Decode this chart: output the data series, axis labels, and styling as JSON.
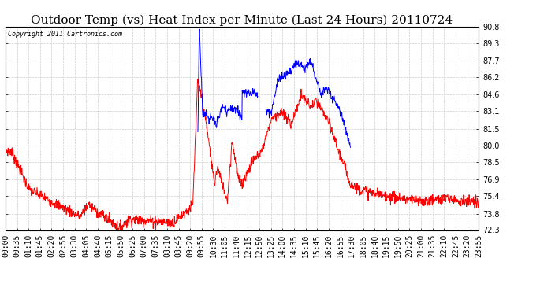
{
  "title": "Outdoor Temp (vs) Heat Index per Minute (Last 24 Hours) 20110724",
  "copyright_text": "Copyright 2011 Cartronics.com",
  "y_min": 72.3,
  "y_max": 90.8,
  "y_ticks": [
    72.3,
    73.8,
    75.4,
    76.9,
    78.5,
    80.0,
    81.5,
    83.1,
    84.6,
    86.2,
    87.7,
    89.3,
    90.8
  ],
  "x_labels": [
    "00:00",
    "00:35",
    "01:10",
    "01:45",
    "02:20",
    "02:55",
    "03:30",
    "04:05",
    "04:40",
    "05:15",
    "05:50",
    "06:25",
    "07:00",
    "07:35",
    "08:10",
    "08:45",
    "09:20",
    "09:55",
    "10:30",
    "11:05",
    "11:40",
    "12:15",
    "12:50",
    "13:25",
    "14:00",
    "14:35",
    "15:10",
    "15:45",
    "16:20",
    "16:55",
    "17:30",
    "18:05",
    "18:40",
    "19:15",
    "19:50",
    "20:25",
    "21:00",
    "21:35",
    "22:10",
    "22:45",
    "23:20",
    "23:55"
  ],
  "background_color": "#ffffff",
  "plot_bg_color": "#ffffff",
  "grid_color": "#cccccc",
  "line_color_red": "#ff0000",
  "line_color_blue": "#0000ff",
  "title_fontsize": 11,
  "tick_fontsize": 7,
  "copyright_fontsize": 6
}
